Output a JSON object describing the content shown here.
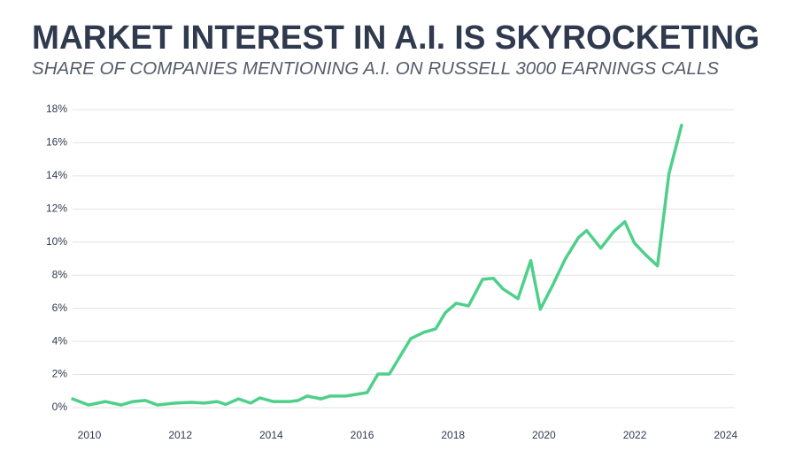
{
  "chart_data": {
    "type": "line",
    "title": "MARKET INTEREST IN A.I. IS SKYROCKETING",
    "subtitle": "SHARE OF COMPANIES MENTIONING A.I. ON RUSSELL 3000 EARNINGS CALLS",
    "x": [
      2009.63,
      2009.98,
      2010.35,
      2010.7,
      2010.96,
      2011.23,
      2011.5,
      2011.88,
      2012.25,
      2012.52,
      2012.81,
      2013.0,
      2013.28,
      2013.55,
      2013.75,
      2014.04,
      2014.41,
      2014.59,
      2014.79,
      2015.1,
      2015.29,
      2015.64,
      2016.11,
      2016.35,
      2016.6,
      2017.07,
      2017.36,
      2017.62,
      2017.83,
      2018.07,
      2018.34,
      2018.65,
      2018.89,
      2019.1,
      2019.43,
      2019.71,
      2019.92,
      2020.2,
      2020.47,
      2020.76,
      2020.94,
      2021.25,
      2021.54,
      2021.78,
      2021.99,
      2022.23,
      2022.5,
      2022.75,
      2023.03
    ],
    "series": [
      {
        "name": "Share of companies",
        "color": "#4ed08a",
        "values": [
          0.53,
          0.16,
          0.37,
          0.16,
          0.37,
          0.43,
          0.16,
          0.27,
          0.32,
          0.27,
          0.37,
          0.2,
          0.53,
          0.27,
          0.59,
          0.37,
          0.37,
          0.43,
          0.7,
          0.53,
          0.7,
          0.7,
          0.91,
          2.03,
          2.03,
          4.17,
          4.55,
          4.76,
          5.73,
          6.31,
          6.15,
          7.75,
          7.81,
          7.17,
          6.58,
          8.88,
          5.94,
          7.43,
          8.98,
          10.27,
          10.7,
          9.63,
          10.64,
          11.23,
          9.95,
          9.25,
          8.56,
          14.12,
          17.06
        ]
      }
    ],
    "xlim": [
      2009.63,
      2024.2
    ],
    "xticks": [
      2010,
      2012,
      2014,
      2016,
      2018,
      2020,
      2022,
      2024
    ],
    "ylim": [
      0,
      18
    ],
    "yticks": [
      {
        "value": 0,
        "label": "0%"
      },
      {
        "value": 2,
        "label": "2%"
      },
      {
        "value": 4,
        "label": "4%"
      },
      {
        "value": 6,
        "label": "6%"
      },
      {
        "value": 8,
        "label": "8%"
      },
      {
        "value": 10,
        "label": "10%"
      },
      {
        "value": 12,
        "label": "12%"
      },
      {
        "value": 14,
        "label": "14%"
      },
      {
        "value": 16,
        "label": "16%"
      },
      {
        "value": 18,
        "label": "18%"
      }
    ],
    "grid": true
  }
}
